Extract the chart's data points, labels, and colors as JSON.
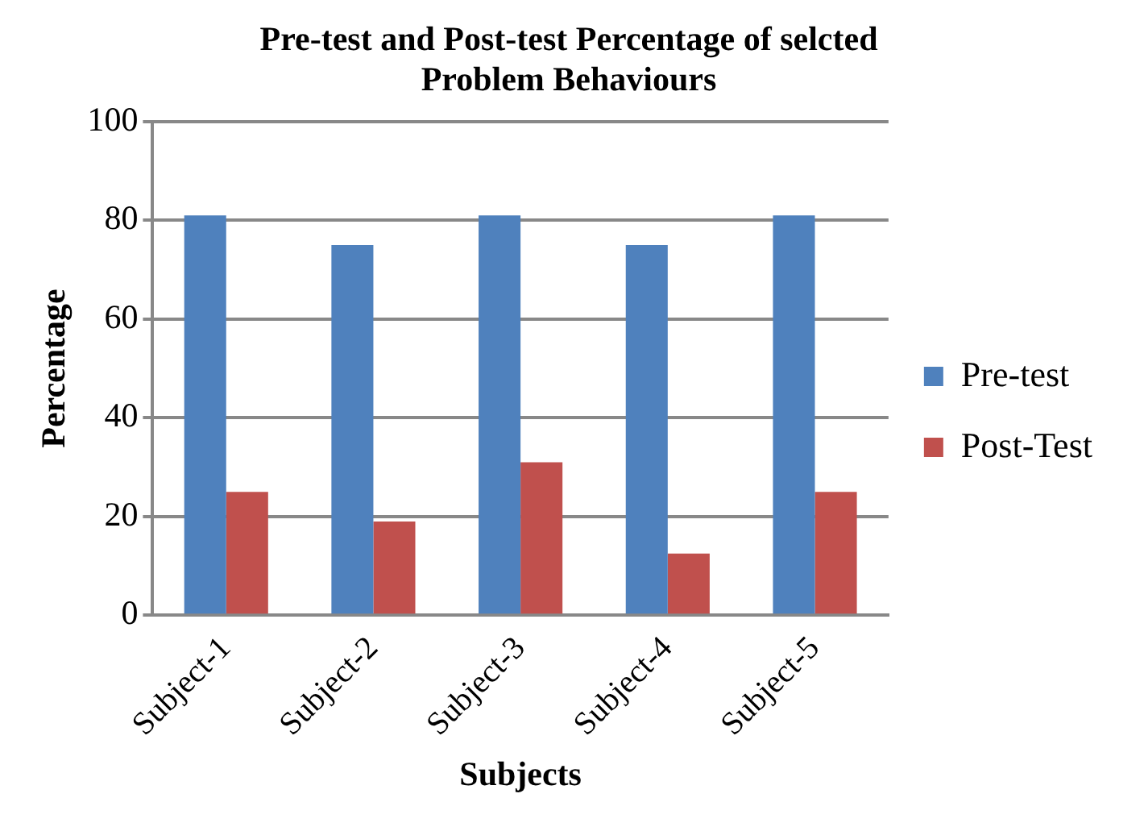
{
  "chart_data": {
    "type": "bar",
    "title": "Pre-test and Post-test Percentage of selcted Problem Behaviours",
    "xlabel": "Subjects",
    "ylabel": "Percentage",
    "categories": [
      "Subject-1",
      "Subject-2",
      "Subject-3",
      "Subject-4",
      "Subject-5"
    ],
    "series": [
      {
        "name": "Pre-test",
        "color": "#4f81bd",
        "values": [
          81,
          75,
          81,
          75,
          81
        ]
      },
      {
        "name": "Post-Test",
        "color": "#c0504d",
        "values": [
          25,
          19,
          31,
          12.5,
          25
        ]
      }
    ],
    "ylim": [
      0,
      100
    ],
    "yticks": [
      0,
      20,
      40,
      60,
      80,
      100
    ],
    "grid": "y",
    "legend": "right"
  }
}
